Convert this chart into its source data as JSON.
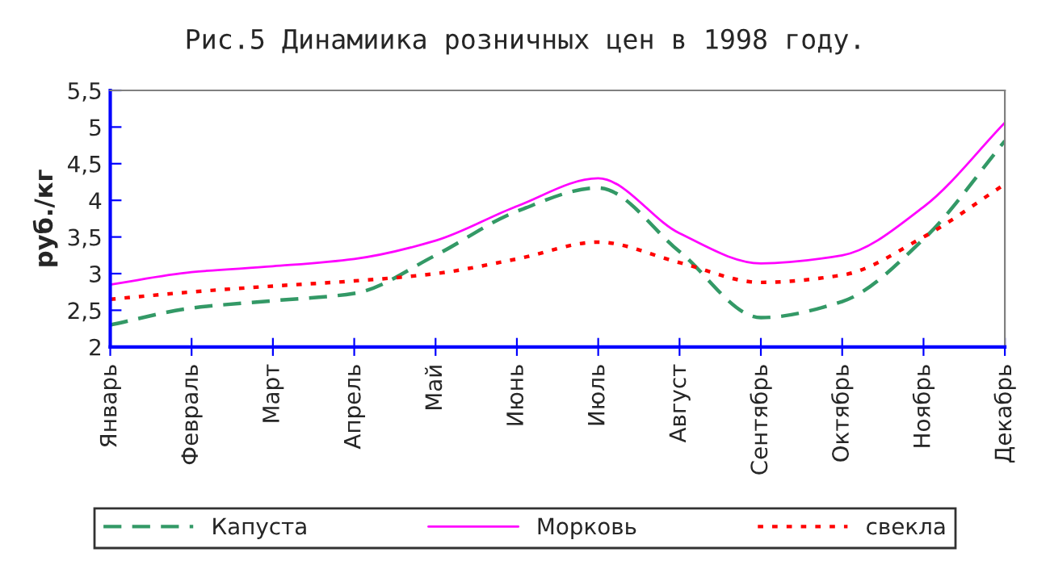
{
  "chart_data": {
    "type": "line",
    "title": "Рис.5 Динамиика розничных цен в 1998 году.",
    "ylabel": "руб./кг",
    "categories": [
      "Январь",
      "Февраль",
      "Март",
      "Апрель",
      "Май",
      "Июнь",
      "Июль",
      "Август",
      "Сентябрь",
      "Октябрь",
      "Ноябрь",
      "Декабрь"
    ],
    "series": [
      {
        "name": "Капуста",
        "color": "#339966",
        "line_style": "dashed",
        "values": [
          2.3,
          2.53,
          2.63,
          2.73,
          3.25,
          3.85,
          4.17,
          3.3,
          2.4,
          2.62,
          3.47,
          4.81
        ]
      },
      {
        "name": "Морковь",
        "color": "#ff00ff",
        "line_style": "solid",
        "values": [
          2.85,
          3.02,
          3.1,
          3.2,
          3.45,
          3.92,
          4.3,
          3.55,
          3.14,
          3.25,
          3.91,
          5.06
        ]
      },
      {
        "name": "свекла",
        "color": "#ff0000",
        "line_style": "dotted",
        "values": [
          2.65,
          2.75,
          2.83,
          2.9,
          3.0,
          3.2,
          3.43,
          3.15,
          2.88,
          2.98,
          3.5,
          4.22
        ]
      }
    ],
    "ylim": [
      2,
      5.5
    ],
    "yticks": [
      2,
      {
        "value": 2.5,
        "label": "2,5"
      },
      3,
      {
        "value": 3.5,
        "label": "3,5"
      },
      4,
      {
        "value": 4.5,
        "label": "4,5"
      },
      5,
      {
        "value": 5.5,
        "label": "5,5"
      }
    ],
    "grid": false,
    "legend": "bottom",
    "marker": "none"
  }
}
